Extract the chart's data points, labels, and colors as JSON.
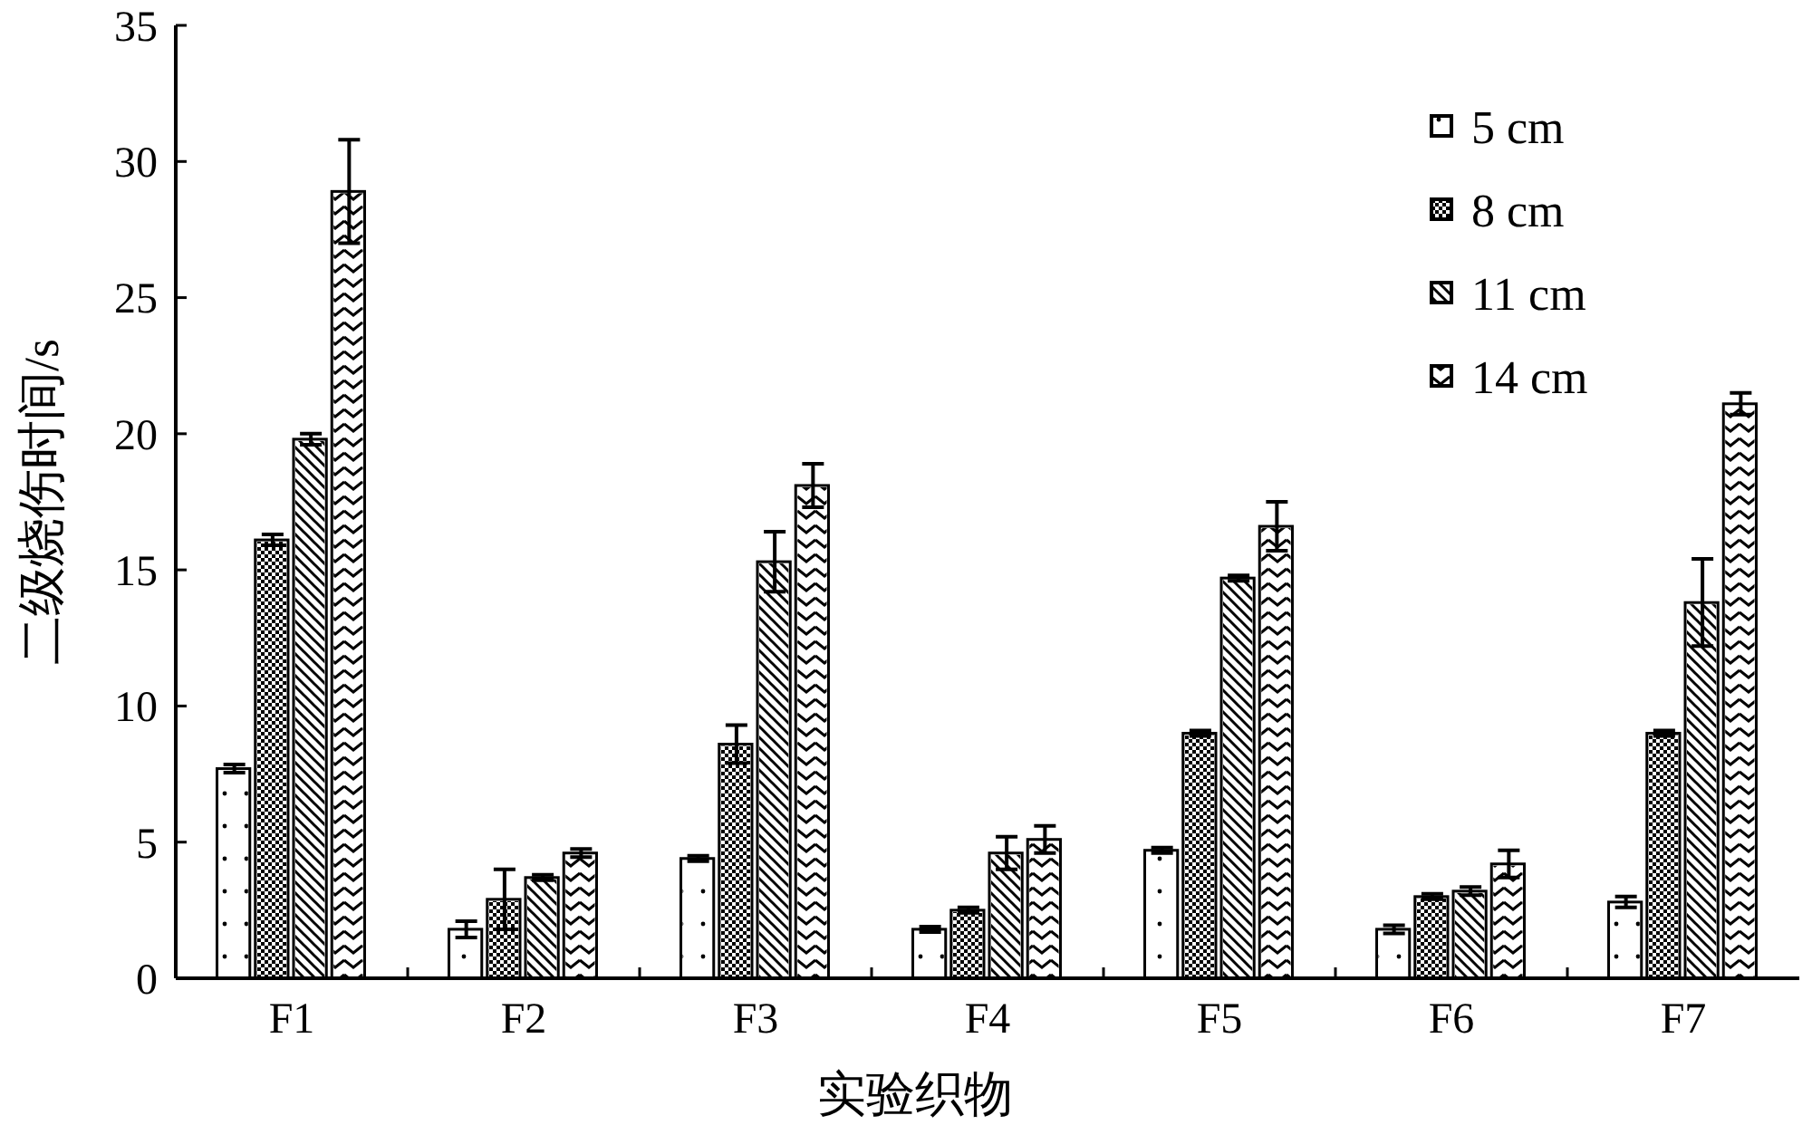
{
  "chart_data": {
    "type": "bar",
    "xlabel": "实验织物",
    "ylabel": "二级烧伤时间/s",
    "categories": [
      "F1",
      "F2",
      "F3",
      "F4",
      "F5",
      "F6",
      "F7"
    ],
    "series": [
      {
        "name": "5 cm",
        "color": "#ffffff",
        "values": [
          7.7,
          1.8,
          4.4,
          1.8,
          4.7,
          1.8,
          2.8
        ],
        "errors": [
          0.15,
          0.3,
          0.1,
          0.1,
          0.1,
          0.15,
          0.2
        ]
      },
      {
        "name": "8 cm",
        "color": "#ffffff",
        "values": [
          16.1,
          2.9,
          8.6,
          2.5,
          9.0,
          3.0,
          9.0
        ],
        "errors": [
          0.2,
          1.1,
          0.7,
          0.1,
          0.1,
          0.1,
          0.1
        ]
      },
      {
        "name": "11 cm",
        "color": "#ffffff",
        "values": [
          19.8,
          3.7,
          15.3,
          4.6,
          14.7,
          3.2,
          13.8
        ],
        "errors": [
          0.2,
          0.1,
          1.1,
          0.6,
          0.1,
          0.15,
          1.6
        ]
      },
      {
        "name": "14 cm",
        "color": "#ffffff",
        "values": [
          28.9,
          4.6,
          18.1,
          5.1,
          16.6,
          4.2,
          21.1
        ],
        "errors": [
          1.9,
          0.15,
          0.8,
          0.5,
          0.9,
          0.5,
          0.4
        ]
      }
    ],
    "ylim": [
      0,
      35
    ],
    "yticks": [
      0,
      5,
      10,
      15,
      20,
      25,
      30,
      35
    ],
    "grid": false,
    "legend": "top right"
  }
}
